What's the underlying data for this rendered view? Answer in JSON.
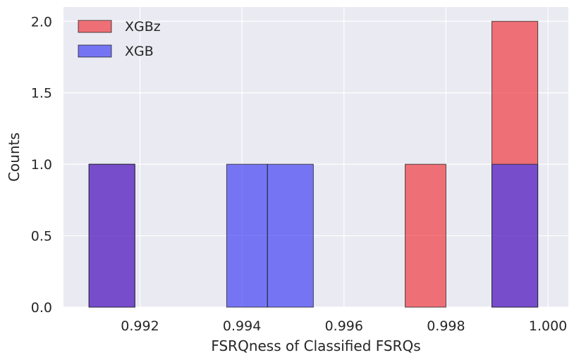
{
  "chart_data": {
    "type": "bar",
    "xlabel": "FSRQness of Classified FSRQs",
    "ylabel": "Counts",
    "xlim": [
      0.9905,
      1.0004
    ],
    "ylim": [
      0,
      2.1
    ],
    "grid": true,
    "legend_position": "top-left",
    "x_ticks": [
      "0.992",
      "0.994",
      "0.996",
      "0.998",
      "1.000"
    ],
    "y_ticks": [
      "0.0",
      "0.5",
      "1.0",
      "1.5",
      "2.0"
    ],
    "series": [
      {
        "name": "XGBz",
        "color": "#f0353b",
        "bins": [
          {
            "x0": 0.991,
            "x1": 0.9919,
            "count": 1
          },
          {
            "x0": 0.9972,
            "x1": 0.998,
            "count": 1
          },
          {
            "x0": 0.9989,
            "x1": 0.9998,
            "count": 2
          }
        ]
      },
      {
        "name": "XGB",
        "color": "#3e3ef5",
        "bins": [
          {
            "x0": 0.991,
            "x1": 0.9919,
            "count": 1
          },
          {
            "x0": 0.9937,
            "x1": 0.9945,
            "count": 1
          },
          {
            "x0": 0.9945,
            "x1": 0.9954,
            "count": 1
          },
          {
            "x0": 0.9989,
            "x1": 0.9998,
            "count": 1
          }
        ]
      }
    ]
  }
}
